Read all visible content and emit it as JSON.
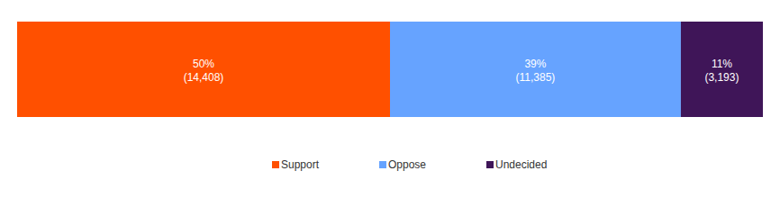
{
  "chart_data": {
    "type": "bar",
    "orientation": "horizontal",
    "stacked": true,
    "data_labels": true,
    "tick_labels": false,
    "grid": false,
    "legend": "bottom",
    "categories": [
      null
    ],
    "xlim": [
      0,
      100
    ],
    "series": [
      {
        "name": "Support",
        "color": "#ff5000",
        "values": [
          50
        ],
        "value_labels": [
          "50%"
        ],
        "counts": [
          14408
        ],
        "count_labels": [
          "(14,408)"
        ]
      },
      {
        "name": "Oppose",
        "color": "#66a3ff",
        "values": [
          39
        ],
        "value_labels": [
          "39%"
        ],
        "counts": [
          11385
        ],
        "count_labels": [
          "(11,385)"
        ]
      },
      {
        "name": "Undecided",
        "color": "#3f1558",
        "values": [
          11
        ],
        "value_labels": [
          "11%"
        ],
        "counts": [
          3193
        ],
        "count_labels": [
          "(3,193)"
        ]
      }
    ]
  }
}
